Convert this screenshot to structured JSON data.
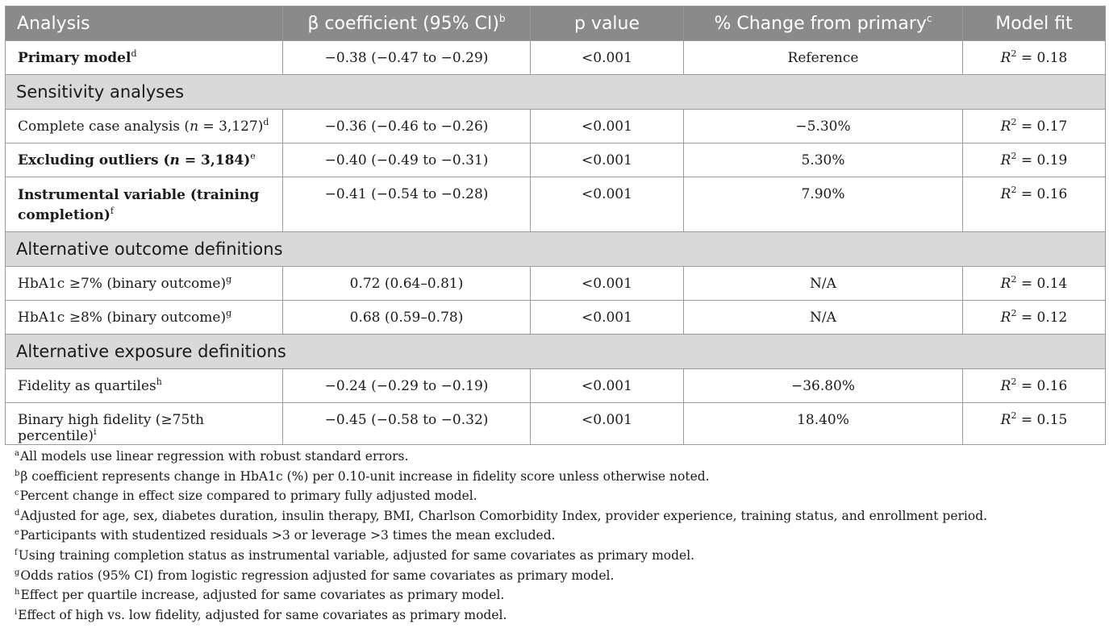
{
  "table": {
    "headers": {
      "analysis": "Analysis",
      "beta": "β coefficient (95% CI)",
      "beta_sup": "b",
      "p": "p value",
      "change": "% Change from primary",
      "change_sup": "c",
      "fit": "Model fit"
    },
    "rows": [
      {
        "label": "Primary model",
        "sup": "d",
        "beta": "−0.38 (−0.47 to −0.29)",
        "p": "<0.001",
        "change": "Reference",
        "r2": "= 0.18"
      },
      {
        "section": "Sensitivity analyses"
      },
      {
        "label": "Complete case analysis (n = 3,127)",
        "sup": "d",
        "beta": "−0.36 (−0.46 to −0.26)",
        "p": "<0.001",
        "change": "−5.30%",
        "r2": "= 0.17"
      },
      {
        "label": "Excluding outliers (n = 3,184)",
        "sup": "e",
        "beta": "−0.40 (−0.49 to −0.31)",
        "p": "<0.001",
        "change": "5.30%",
        "r2": "= 0.19"
      },
      {
        "label": "Instrumental variable (training completion)",
        "sup": "f",
        "beta": "−0.41 (−0.54 to −0.28)",
        "p": "<0.001",
        "change": "7.90%",
        "r2": "= 0.16"
      },
      {
        "section": "Alternative outcome definitions"
      },
      {
        "label": "HbA1c ≥7% (binary outcome)",
        "sup": "g",
        "beta": "0.72 (0.64–0.81)",
        "p": "<0.001",
        "change": "N/A",
        "r2": "= 0.14"
      },
      {
        "label": "HbA1c ≥8% (binary outcome)",
        "sup": "g",
        "beta": "0.68 (0.59–0.78)",
        "p": "<0.001",
        "change": "N/A",
        "r2": "= 0.12"
      },
      {
        "section": "Alternative exposure definitions"
      },
      {
        "label": "Fidelity as quartiles",
        "sup": "h",
        "beta": "−0.24 (−0.29 to −0.19)",
        "p": "<0.001",
        "change": "−36.80%",
        "r2": "= 0.16"
      },
      {
        "label": "Binary high fidelity (≥75th percentile)",
        "sup": "i",
        "beta": "−0.45 (−0.58 to −0.32)",
        "p": "<0.001",
        "change": "18.40%",
        "r2": "= 0.15"
      }
    ]
  },
  "footnotes": [
    {
      "mark": "a",
      "text": "All models use linear regression with robust standard errors."
    },
    {
      "mark": "b",
      "text": "β coefficient represents change in HbA1c (%) per 0.10-unit increase in fidelity score unless otherwise noted."
    },
    {
      "mark": "c",
      "text": "Percent change in effect size compared to primary fully adjusted model."
    },
    {
      "mark": "d",
      "text": "Adjusted for age, sex, diabetes duration, insulin therapy, BMI, Charlson Comorbidity Index, provider experience, training status, and enrollment period."
    },
    {
      "mark": "e",
      "text": "Participants with studentized residuals >3 or leverage >3 times the mean excluded."
    },
    {
      "mark": "f",
      "text": "Using training completion status as instrumental variable, adjusted for same covariates as primary model."
    },
    {
      "mark": "g",
      "text": "Odds ratios (95% CI) from logistic regression adjusted for same covariates as primary model."
    },
    {
      "mark": "h",
      "text": "Effect per quartile increase, adjusted for same covariates as primary model."
    },
    {
      "mark": "i",
      "text": "Effect of high vs. low fidelity, adjusted for same covariates as primary model."
    }
  ]
}
